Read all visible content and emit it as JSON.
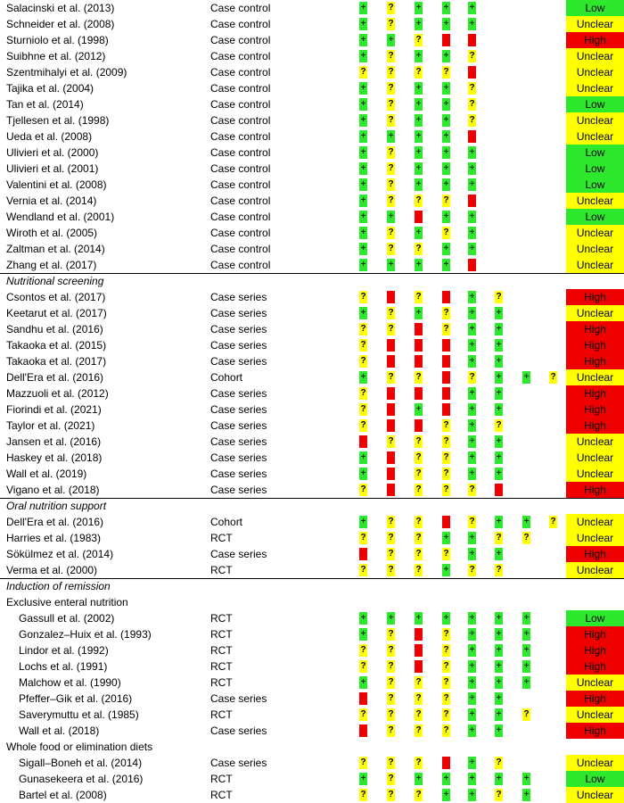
{
  "groups": [
    {
      "title": "",
      "subgroups": [
        {
          "title": "",
          "rows": [
            {
              "study": "Salacinski et al. (2013)",
              "design": "Case control",
              "ratings": [
                "+",
                "?",
                "+",
                "+",
                "+",
                "",
                "",
                ""
              ],
              "overall": "Low"
            },
            {
              "study": "Schneider et al. (2008)",
              "design": "Case control",
              "ratings": [
                "+",
                "?",
                "+",
                "+",
                "+",
                "",
                "",
                ""
              ],
              "overall": "Unclear"
            },
            {
              "study": "Sturniolo et al. (1998)",
              "design": "Case control",
              "ratings": [
                "+",
                "+",
                "?",
                "–",
                "–",
                "",
                "",
                ""
              ],
              "overall": "High"
            },
            {
              "study": "Suibhne et al. (2012)",
              "design": "Case control",
              "ratings": [
                "+",
                "?",
                "+",
                "+",
                "?",
                "",
                "",
                ""
              ],
              "overall": "Unclear"
            },
            {
              "study": "Szentmihalyi et al. (2009)",
              "design": "Case control",
              "ratings": [
                "?",
                "?",
                "?",
                "?",
                "–",
                "",
                "",
                ""
              ],
              "overall": "Unclear"
            },
            {
              "study": "Tajika et al. (2004)",
              "design": "Case control",
              "ratings": [
                "+",
                "?",
                "+",
                "+",
                "?",
                "",
                "",
                ""
              ],
              "overall": "Unclear"
            },
            {
              "study": "Tan et al. (2014)",
              "design": "Case control",
              "ratings": [
                "+",
                "?",
                "+",
                "+",
                "?",
                "",
                "",
                ""
              ],
              "overall": "Low"
            },
            {
              "study": "Tjellesen et al. (1998)",
              "design": "Case control",
              "ratings": [
                "+",
                "?",
                "+",
                "+",
                "?",
                "",
                "",
                ""
              ],
              "overall": "Unclear"
            },
            {
              "study": "Ueda et al. (2008)",
              "design": "Case control",
              "ratings": [
                "+",
                "+",
                "+",
                "+",
                "–",
                "",
                "",
                ""
              ],
              "overall": "Unclear"
            },
            {
              "study": "Ulivieri et al. (2000)",
              "design": "Case control",
              "ratings": [
                "+",
                "?",
                "+",
                "+",
                "+",
                "",
                "",
                ""
              ],
              "overall": "Low"
            },
            {
              "study": "Ulivieri et al. (2001)",
              "design": "Case control",
              "ratings": [
                "+",
                "?",
                "+",
                "+",
                "+",
                "",
                "",
                ""
              ],
              "overall": "Low"
            },
            {
              "study": "Valentini et al. (2008)",
              "design": "Case control",
              "ratings": [
                "+",
                "?",
                "+",
                "+",
                "+",
                "",
                "",
                ""
              ],
              "overall": "Low"
            },
            {
              "study": "Vernia et al. (2014)",
              "design": "Case control",
              "ratings": [
                "+",
                "?",
                "?",
                "?",
                "–",
                "",
                "",
                ""
              ],
              "overall": "Unclear"
            },
            {
              "study": "Wendland et al. (2001)",
              "design": "Case control",
              "ratings": [
                "+",
                "+",
                "–",
                "+",
                "+",
                "",
                "",
                ""
              ],
              "overall": "Low"
            },
            {
              "study": "Wiroth et al. (2005)",
              "design": "Case control",
              "ratings": [
                "+",
                "?",
                "+",
                "?",
                "+",
                "",
                "",
                ""
              ],
              "overall": "Unclear"
            },
            {
              "study": "Zaltman et al. (2014)",
              "design": "Case control",
              "ratings": [
                "+",
                "?",
                "?",
                "+",
                "+",
                "",
                "",
                ""
              ],
              "overall": "Unclear"
            },
            {
              "study": "Zhang et al. (2017)",
              "design": "Case control",
              "ratings": [
                "+",
                "+",
                "+",
                "+",
                "–",
                "",
                "",
                ""
              ],
              "overall": "Unclear"
            }
          ]
        }
      ]
    },
    {
      "title": "Nutritional screening",
      "subgroups": [
        {
          "title": "",
          "rows": [
            {
              "study": "Csontos et al. (2017)",
              "design": "Case series",
              "ratings": [
                "?",
                "–",
                "?",
                "–",
                "+",
                "?",
                "",
                ""
              ],
              "overall": "High"
            },
            {
              "study": "Keetarut et al. (2017)",
              "design": "Case series",
              "ratings": [
                "+",
                "?",
                "+",
                "?",
                "+",
                "+",
                "",
                ""
              ],
              "overall": "Unclear"
            },
            {
              "study": "Sandhu et al. (2016)",
              "design": "Case series",
              "ratings": [
                "?",
                "?",
                "–",
                "?",
                "+",
                "+",
                "",
                ""
              ],
              "overall": "High"
            },
            {
              "study": "Takaoka et al. (2015)",
              "design": "Case series",
              "ratings": [
                "?",
                "–",
                "–",
                "–",
                "+",
                "+",
                "",
                ""
              ],
              "overall": "High"
            },
            {
              "study": "Takaoka et al. (2017)",
              "design": "Case series",
              "ratings": [
                "?",
                "–",
                "–",
                "–",
                "+",
                "+",
                "",
                ""
              ],
              "overall": "High"
            },
            {
              "study": "Dell'Era et al. (2016)",
              "design": "Cohort",
              "ratings": [
                "+",
                "?",
                "?",
                "–",
                "?",
                "+",
                "+",
                "?"
              ],
              "overall": "Unclear"
            },
            {
              "study": "Mazzuoli et al. (2012)",
              "design": "Case series",
              "ratings": [
                "?",
                "–",
                "–",
                "–",
                "+",
                "+",
                "",
                ""
              ],
              "overall": "High"
            },
            {
              "study": "Fiorindi et al. (2021)",
              "design": "Case series",
              "ratings": [
                "?",
                "–",
                "+",
                "–",
                "+",
                "+",
                "",
                ""
              ],
              "overall": "High"
            },
            {
              "study": "Taylor et al. (2021)",
              "design": "Case series",
              "ratings": [
                "?",
                "–",
                "–",
                "?",
                "+",
                "?",
                "",
                ""
              ],
              "overall": "High"
            },
            {
              "study": "Jansen et al. (2016)",
              "design": "Case series",
              "ratings": [
                "–",
                "?",
                "?",
                "?",
                "+",
                "+",
                "",
                ""
              ],
              "overall": "Unclear"
            },
            {
              "study": "Haskey et al. (2018)",
              "design": "Case series",
              "ratings": [
                "+",
                "–",
                "?",
                "?",
                "+",
                "+",
                "",
                ""
              ],
              "overall": "Unclear"
            },
            {
              "study": "Wall et al. (2019)",
              "design": "Case series",
              "ratings": [
                "+",
                "–",
                "?",
                "?",
                "+",
                "+",
                "",
                ""
              ],
              "overall": "Unclear"
            },
            {
              "study": "Vigano et al. (2018)",
              "design": "Case series",
              "ratings": [
                "?",
                "–",
                "?",
                "?",
                "?",
                "–",
                "",
                ""
              ],
              "overall": "High"
            }
          ]
        }
      ]
    },
    {
      "title": "Oral nutrition support",
      "subgroups": [
        {
          "title": "",
          "rows": [
            {
              "study": "Dell'Era et al. (2016)",
              "design": "Cohort",
              "ratings": [
                "+",
                "?",
                "?",
                "–",
                "?",
                "+",
                "+",
                "?"
              ],
              "overall": "Unclear"
            },
            {
              "study": "Harries et al. (1983)",
              "design": "RCT",
              "ratings": [
                "?",
                "?",
                "?",
                "+",
                "+",
                "?",
                "?",
                ""
              ],
              "overall": "Unclear"
            },
            {
              "study": "Sökülmez et al. (2014)",
              "design": "Case series",
              "ratings": [
                "–",
                "?",
                "?",
                "?",
                "+",
                "+",
                "",
                ""
              ],
              "overall": "High"
            },
            {
              "study": "Verma et al. (2000)",
              "design": "RCT",
              "ratings": [
                "?",
                "?",
                "?",
                "+",
                "?",
                "?",
                "",
                ""
              ],
              "overall": "Unclear"
            }
          ]
        }
      ]
    },
    {
      "title": "Induction of remission",
      "subgroups": [
        {
          "title": "Exclusive enteral nutrition",
          "rows": [
            {
              "study": "Gassull et al. (2002)",
              "design": "RCT",
              "ratings": [
                "+",
                "+",
                "+",
                "+",
                "+",
                "+",
                "+",
                ""
              ],
              "overall": "Low"
            },
            {
              "study": "Gonzalez–Huix et al. (1993)",
              "design": "RCT",
              "ratings": [
                "+",
                "?",
                "–",
                "?",
                "+",
                "+",
                "+",
                ""
              ],
              "overall": "High"
            },
            {
              "study": "Lindor et al. (1992)",
              "design": "RCT",
              "ratings": [
                "?",
                "?",
                "–",
                "?",
                "+",
                "+",
                "+",
                ""
              ],
              "overall": "High"
            },
            {
              "study": "Lochs et al. (1991)",
              "design": "RCT",
              "ratings": [
                "?",
                "?",
                "–",
                "?",
                "+",
                "+",
                "+",
                ""
              ],
              "overall": "High"
            },
            {
              "study": "Malchow et al. (1990)",
              "design": "RCT",
              "ratings": [
                "+",
                "?",
                "?",
                "?",
                "+",
                "+",
                "+",
                ""
              ],
              "overall": "Unclear"
            },
            {
              "study": "Pfeffer–Gik et al. (2016)",
              "design": "Case series",
              "ratings": [
                "–",
                "?",
                "?",
                "?",
                "+",
                "+",
                "",
                ""
              ],
              "overall": "High"
            },
            {
              "study": "Saverymuttu et al. (1985)",
              "design": "RCT",
              "ratings": [
                "?",
                "?",
                "?",
                "?",
                "+",
                "+",
                "?",
                ""
              ],
              "overall": "Unclear"
            },
            {
              "study": "Wall et al. (2018)",
              "design": "Case series",
              "ratings": [
                "–",
                "?",
                "?",
                "?",
                "+",
                "+",
                "",
                ""
              ],
              "overall": "High"
            }
          ]
        },
        {
          "title": "Whole food or elimination diets",
          "rows": [
            {
              "study": "Sigall–Boneh et al. (2014)",
              "design": "Case series",
              "ratings": [
                "?",
                "?",
                "?",
                "–",
                "+",
                "?",
                "",
                ""
              ],
              "overall": "Unclear"
            },
            {
              "study": "Gunasekeera et al. (2016)",
              "design": "RCT",
              "ratings": [
                "+",
                "?",
                "+",
                "+",
                "+",
                "+",
                "+",
                ""
              ],
              "overall": "Low"
            },
            {
              "study": "Bartel et al. (2008)",
              "design": "RCT",
              "ratings": [
                "?",
                "?",
                "?",
                "+",
                "+",
                "?",
                "+",
                ""
              ],
              "overall": "Unclear"
            }
          ]
        }
      ]
    }
  ],
  "colors": {
    "plus": "#2ee82e",
    "unclear": "#ffff00",
    "minus": "#ee0000"
  }
}
